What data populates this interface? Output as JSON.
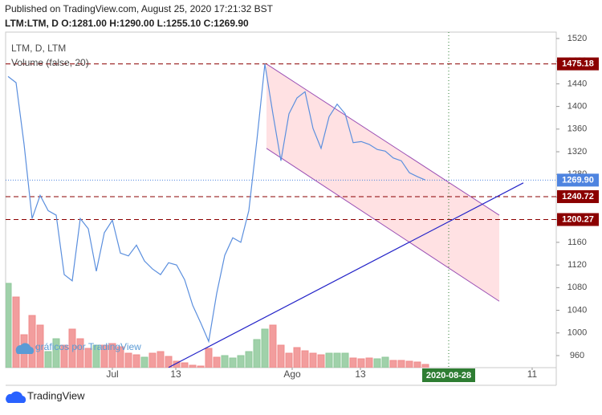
{
  "chart_data": {
    "type": "line",
    "title": "Published on TradingView.com, August 25, 2020 17:21:32 BST",
    "subtitle": "LTM:LTM, D O:1281.00 H:1290.00 L:1255.10 C:1269.90",
    "watermark": "gráficos por TradingView",
    "branding": "TradingView",
    "x": [
      -13,
      -12,
      -11,
      -10,
      -9,
      -8,
      -7,
      -6,
      -5,
      -4,
      -3,
      -2,
      -1,
      0,
      1,
      2,
      3,
      4,
      5,
      6,
      7,
      8,
      9,
      10,
      11,
      12,
      13,
      14,
      15,
      16,
      17,
      18,
      19,
      20,
      21,
      22,
      23,
      24,
      25,
      26,
      27,
      28,
      29,
      30,
      31,
      32,
      33,
      34,
      35,
      36,
      37,
      38,
      39
    ],
    "series": [
      {
        "name": "LTM, D, LTM",
        "color": "#5b8fde",
        "values": [
          1453,
          1442,
          1333,
          1202,
          1243,
          1216,
          1208,
          1103,
          1092,
          1202,
          1184,
          1109,
          1177,
          1199,
          1141,
          1136,
          1155,
          1127,
          1113,
          1103,
          1124,
          1120,
          1094,
          1049,
          1018,
          985,
          1070,
          1137,
          1168,
          1160,
          1216,
          1340,
          1475,
          1387,
          1304,
          1387,
          1415,
          1426,
          1361,
          1326,
          1382,
          1404,
          1387,
          1336,
          1338,
          1333,
          1324,
          1321,
          1309,
          1304,
          1283,
          1276,
          1270
        ]
      }
    ],
    "volume": {
      "name": "Volume (false, 20)",
      "ylim": [
        0,
        418
      ],
      "values": [
        105,
        88,
        41,
        65,
        53,
        20,
        36,
        28,
        48,
        36,
        24,
        28,
        28,
        30,
        26,
        18,
        16,
        13,
        18,
        20,
        14,
        8,
        6,
        3,
        2,
        24,
        13,
        15,
        12,
        15,
        20,
        35,
        48,
        53,
        28,
        18,
        25,
        21,
        18,
        16,
        18,
        18,
        18,
        12,
        11,
        12,
        11,
        13,
        9,
        9,
        8,
        7,
        4
      ],
      "colors": [
        "#8fc99b",
        "#f08c8c",
        "#f08c8c",
        "#f08c8c",
        "#f08c8c",
        "#8fc99b",
        "#8fc99b",
        "#f08c8c",
        "#f08c8c",
        "#f08c8c",
        "#f08c8c",
        "#8fc99b",
        "#f08c8c",
        "#f08c8c",
        "#f08c8c",
        "#f08c8c",
        "#f08c8c",
        "#8fc99b",
        "#f08c8c",
        "#f08c8c",
        "#f08c8c",
        "#f08c8c",
        "#f08c8c",
        "#f08c8c",
        "#f08c8c",
        "#f08c8c",
        "#f08c8c",
        "#8fc99b",
        "#8fc99b",
        "#8fc99b",
        "#8fc99b",
        "#8fc99b",
        "#8fc99b",
        "#f08c8c",
        "#f08c8c",
        "#f08c8c",
        "#f08c8c",
        "#f08c8c",
        "#f08c8c",
        "#f08c8c",
        "#8fc99b",
        "#8fc99b",
        "#8fc99b",
        "#f08c8c",
        "#f08c8c",
        "#f08c8c",
        "#8fc99b",
        "#8fc99b",
        "#f08c8c",
        "#f08c8c",
        "#f08c8c",
        "#f08c8c",
        "#f08c8c"
      ]
    },
    "xlim": [
      -13.3,
      55.3
    ],
    "ylim": [
      938.7,
      1531.3
    ],
    "yticks": [
      960,
      1000,
      1040,
      1080,
      1120,
      1160,
      1200,
      1240,
      1280,
      1320,
      1360,
      1400,
      1440,
      1480,
      1520
    ],
    "xticks": [
      {
        "value": 0,
        "label": "Jul"
      },
      {
        "value": 7.9,
        "label": "13"
      },
      {
        "value": 22.4,
        "label": "Ago"
      },
      {
        "value": 30.9,
        "label": "13"
      },
      {
        "value": 52.3,
        "label": "11"
      }
    ],
    "grid": false,
    "hlines": [
      {
        "value": 1475.18,
        "color": "#8b0000"
      },
      {
        "value": 1240.72,
        "color": "#8b0000"
      },
      {
        "value": 1200.27,
        "color": "#8b0000"
      }
    ],
    "last_price": {
      "value": 1269.9,
      "label": "1269.90",
      "color": "#4e84e0"
    },
    "crosshair": {
      "x": 41.9,
      "label": "2020-08-28",
      "color": "#2e7d32"
    },
    "trend_line": {
      "x": [
        7,
        51.2
      ],
      "y": [
        939,
        1265
      ],
      "color": "#2323c8"
    },
    "channel": {
      "x": [
        19.2,
        48.2
      ],
      "upper": [
        1475,
        1208
      ],
      "lower": [
        1326,
        1056
      ],
      "color": "#9b4fb4",
      "fill": "#ffd9dc"
    }
  }
}
